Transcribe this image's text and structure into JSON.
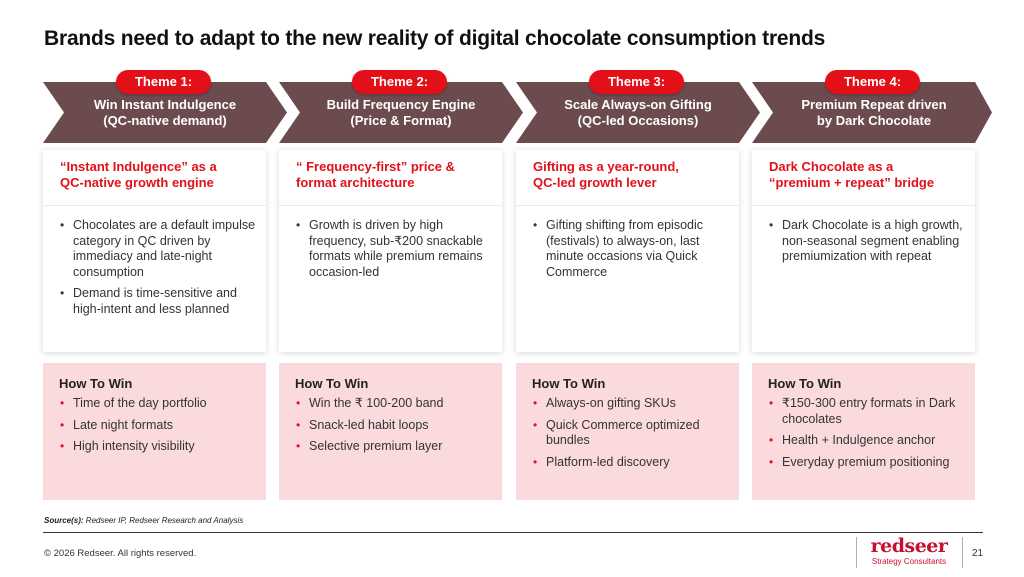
{
  "title": "Brands need to adapt to the new reality of digital chocolate consumption trends",
  "colors": {
    "accent_red": "#e3101a",
    "chevron": "#6b4b4d",
    "win_bg": "#fadadd",
    "logo_red": "#c8102e"
  },
  "themes": [
    {
      "pill": "Theme 1:",
      "chevron_lines": [
        "Win Instant Indulgence",
        "(QC-native demand)"
      ],
      "card_title_lines": [
        "“Instant Indulgence” as a",
        "QC-native growth engine"
      ],
      "bullets": [
        "Chocolates are a default impulse category in QC driven by immediacy and late-night consumption",
        "Demand is time-sensitive and high-intent and less planned"
      ],
      "how_to_win_title": "How To Win",
      "how_to_win": [
        "Time of the day portfolio",
        "Late night formats",
        "High intensity visibility"
      ]
    },
    {
      "pill": "Theme 2:",
      "chevron_lines": [
        "Build Frequency Engine",
        "(Price & Format)"
      ],
      "card_title_lines": [
        "“ Frequency-first” price &",
        "format architecture"
      ],
      "bullets": [
        "Growth is driven by high frequency, sub-₹200 snackable formats while premium remains occasion-led"
      ],
      "how_to_win_title": "How To Win",
      "how_to_win": [
        "Win the ₹ 100-200 band",
        "Snack-led habit loops",
        "Selective premium layer"
      ]
    },
    {
      "pill": "Theme 3:",
      "chevron_lines": [
        "Scale Always-on Gifting",
        "(QC-led Occasions)"
      ],
      "card_title_lines": [
        "Gifting as a year-round,",
        "QC-led growth lever"
      ],
      "bullets": [
        "Gifting shifting from episodic (festivals) to always-on, last minute occasions via Quick Commerce"
      ],
      "how_to_win_title": "How To Win",
      "how_to_win": [
        "Always-on gifting SKUs",
        "Quick Commerce optimized bundles",
        "Platform-led discovery"
      ]
    },
    {
      "pill": "Theme 4:",
      "chevron_lines": [
        "Premium Repeat driven",
        "by Dark Chocolate"
      ],
      "card_title_lines": [
        "Dark Chocolate as a",
        "“premium + repeat” bridge"
      ],
      "bullets": [
        "Dark Chocolate is a high growth, non-seasonal segment enabling premiumization with repeat"
      ],
      "how_to_win_title": "How To Win",
      "how_to_win": [
        "₹150-300 entry formats in Dark chocolates",
        "Health + Indulgence anchor",
        "Everyday premium positioning"
      ]
    }
  ],
  "source_label": "Source(s):",
  "source_text": "Redseer IP, Redseer Research and Analysis",
  "copyright": "© 2026 Redseer. All rights reserved.",
  "logo": {
    "word": "redseer",
    "sub": "Strategy Consultants"
  },
  "page_number": "21"
}
